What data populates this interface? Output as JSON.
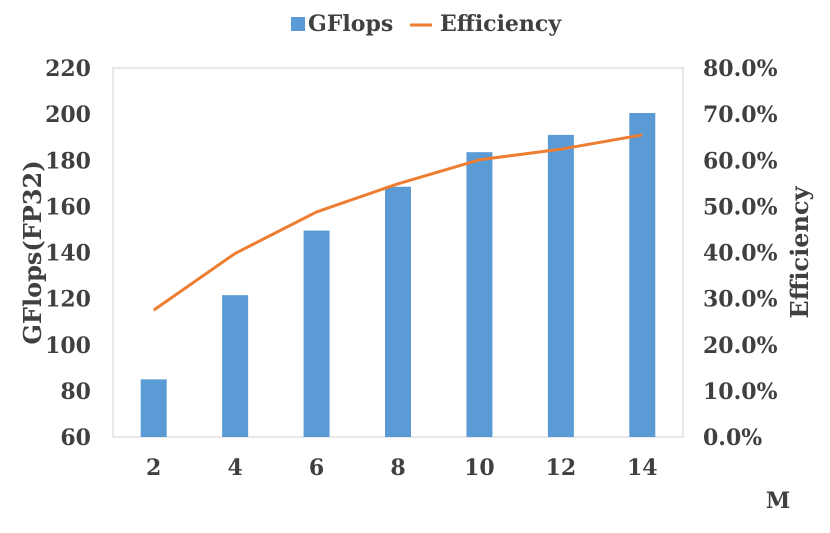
{
  "chart_data": {
    "type": "bar",
    "categories": [
      "2",
      "4",
      "6",
      "8",
      "10",
      "12",
      "14"
    ],
    "series": [
      {
        "name": "GFlops",
        "type": "bar",
        "axis": "left",
        "values": [
          85,
          121.5,
          149.5,
          168.5,
          183.5,
          191,
          200.5
        ],
        "color": "#5B9BD5"
      },
      {
        "name": "Efficiency",
        "type": "line",
        "axis": "right",
        "values": [
          27.5,
          39.8,
          48.8,
          54.9,
          60.1,
          62.4,
          65.5
        ],
        "color": "#ED7D31"
      }
    ],
    "xlabel": "M",
    "ylabel": "GFlops(FP32)",
    "y2label": "Efficiency",
    "ylim": [
      60,
      220
    ],
    "y2lim": [
      0,
      80
    ],
    "yticks": [
      "60",
      "80",
      "100",
      "120",
      "140",
      "160",
      "180",
      "200",
      "220"
    ],
    "y2ticks": [
      "0.0%",
      "10.0%",
      "20.0%",
      "30.0%",
      "40.0%",
      "50.0%",
      "60.0%",
      "70.0%",
      "80.0%"
    ],
    "grid": false,
    "legend_position": "top-center"
  }
}
